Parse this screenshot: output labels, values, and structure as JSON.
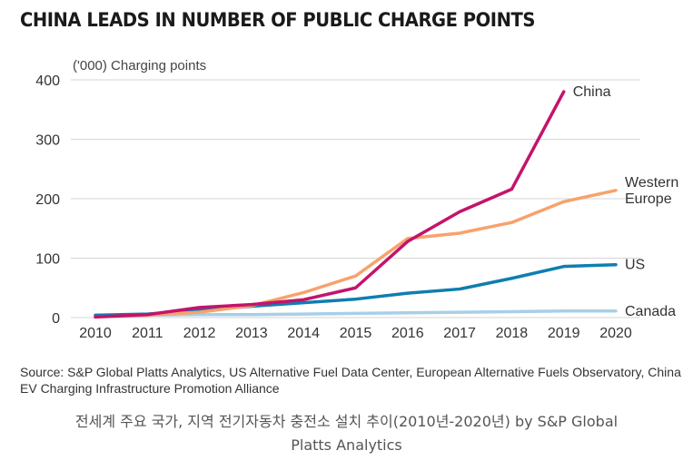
{
  "chart_data": {
    "type": "line",
    "title": "CHINA LEADS IN NUMBER OF PUBLIC CHARGE POINTS",
    "ylabel": "('000) Charging points",
    "xlabel": "",
    "x": [
      "2010",
      "2011",
      "2012",
      "2013",
      "2014",
      "2015",
      "2016",
      "2017",
      "2018",
      "2019",
      "2020"
    ],
    "ylim": [
      0,
      400
    ],
    "yticks": [
      0,
      100,
      200,
      300,
      400
    ],
    "grid": true,
    "legend": "inline-end-labels",
    "series": [
      {
        "name": "Canada",
        "color": "#a8cfe8",
        "values": [
          3,
          4,
          5,
          5,
          6,
          7,
          8,
          9,
          10,
          11,
          11
        ]
      },
      {
        "name": "US",
        "color": "#0e7eb0",
        "values": [
          4,
          6,
          12,
          19,
          25,
          31,
          41,
          48,
          66,
          86,
          89
        ]
      },
      {
        "name": "Western Europe",
        "label_lines": [
          "Western",
          "Europe"
        ],
        "color": "#f7a26c",
        "values": [
          1,
          4,
          9,
          20,
          42,
          70,
          133,
          142,
          160,
          195,
          214
        ]
      },
      {
        "name": "China",
        "color": "#c4136c",
        "values": [
          1,
          5,
          17,
          22,
          30,
          50,
          128,
          178,
          216,
          380,
          null
        ]
      }
    ]
  },
  "source": "Source:  S&P Global Platts Analytics, US Alternative Fuel Data Center, European Alternative Fuels Observatory, China EV Charging Infrastructure Promotion Alliance",
  "caption": {
    "line1": "전세계 주요 국가, 지역 전기자동차 충전소 설치 추이(2010년-2020년) by S&P Global",
    "line2": "Platts Analytics"
  }
}
